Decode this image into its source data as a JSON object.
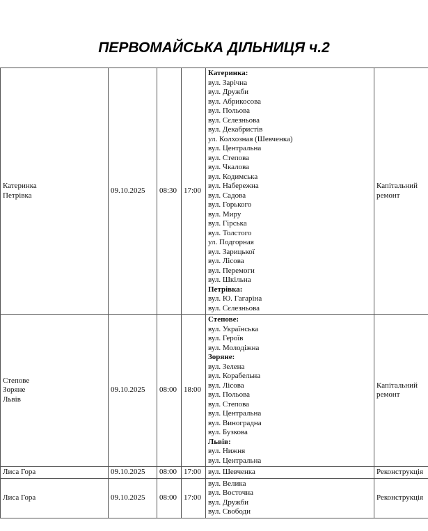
{
  "title": "ПЕРВОМАЙСЬКА ДІЛЬНИЦЯ ч.2",
  "rows": [
    {
      "settlements": [
        "Катеринка",
        "Петрівка"
      ],
      "date": "09.10.2025",
      "start": "08:30",
      "end": "17:00",
      "streets": [
        {
          "t": "Катеринка:",
          "h": true
        },
        {
          "t": "вул. Зарічна"
        },
        {
          "t": "вул. Дружби"
        },
        {
          "t": "вул. Абрикосова"
        },
        {
          "t": "вул. Польова"
        },
        {
          "t": "вул. Сєлезньова"
        },
        {
          "t": "вул. Декабристів"
        },
        {
          "t": "ул. Колхозная (Шевченка)"
        },
        {
          "t": "вул. Центральна"
        },
        {
          "t": "вул. Степова"
        },
        {
          "t": "вул. Чкалова"
        },
        {
          "t": "вул. Кодимська"
        },
        {
          "t": "вул. Набережна"
        },
        {
          "t": "вул. Садова"
        },
        {
          "t": "вул. Горького"
        },
        {
          "t": "вул. Миру"
        },
        {
          "t": "вул. Гірська"
        },
        {
          "t": "вул. Толстого"
        },
        {
          "t": "ул. Подгорная"
        },
        {
          "t": "вул. Зарицької"
        },
        {
          "t": "вул. Лісова"
        },
        {
          "t": "вул. Перемоги"
        },
        {
          "t": "вул. Шкільна"
        },
        {
          "t": "Петрівка:",
          "h": true
        },
        {
          "t": "вул. Ю. Гагаріна"
        },
        {
          "t": "вул. Сєлезньова"
        }
      ],
      "work": [
        "Капітальний",
        "ремонт"
      ]
    },
    {
      "settlements": [
        "Степове",
        "Зоряне",
        "Львів"
      ],
      "date": "09.10.2025",
      "start": "08:00",
      "end": "18:00",
      "streets": [
        {
          "t": "Степове:",
          "h": true
        },
        {
          "t": "вул. Українська"
        },
        {
          "t": "вул. Героїв"
        },
        {
          "t": "вул. Молодіжна"
        },
        {
          "t": "Зоряне:",
          "h": true
        },
        {
          "t": "вул. Зелена"
        },
        {
          "t": "вул. Корабельна"
        },
        {
          "t": "вул. Лісова"
        },
        {
          "t": "вул. Польова"
        },
        {
          "t": "вул. Степова"
        },
        {
          "t": "вул. Центральна"
        },
        {
          "t": "вул. Виноградна"
        },
        {
          "t": "вул. Бузкова"
        },
        {
          "t": "Львів:",
          "h": true
        },
        {
          "t": "вул. Нижня"
        },
        {
          "t": "вул. Центральна"
        }
      ],
      "work": [
        "Капітальний",
        "ремонт"
      ]
    },
    {
      "settlements": [
        "Лиса Гора"
      ],
      "date": "09.10.2025",
      "start": "08:00",
      "end": "17:00",
      "streets": [
        {
          "t": "вул. Шевченка"
        }
      ],
      "work": [
        "Реконструкція"
      ]
    },
    {
      "settlements": [
        "Лиса Гора"
      ],
      "date": "09.10.2025",
      "start": "08:00",
      "end": "17:00",
      "streets": [
        {
          "t": "вул. Велика"
        },
        {
          "t": "вул. Восточна"
        },
        {
          "t": "вул. Дружби"
        },
        {
          "t": "вул. Свободи"
        }
      ],
      "work": [
        "Реконструкція"
      ]
    }
  ]
}
